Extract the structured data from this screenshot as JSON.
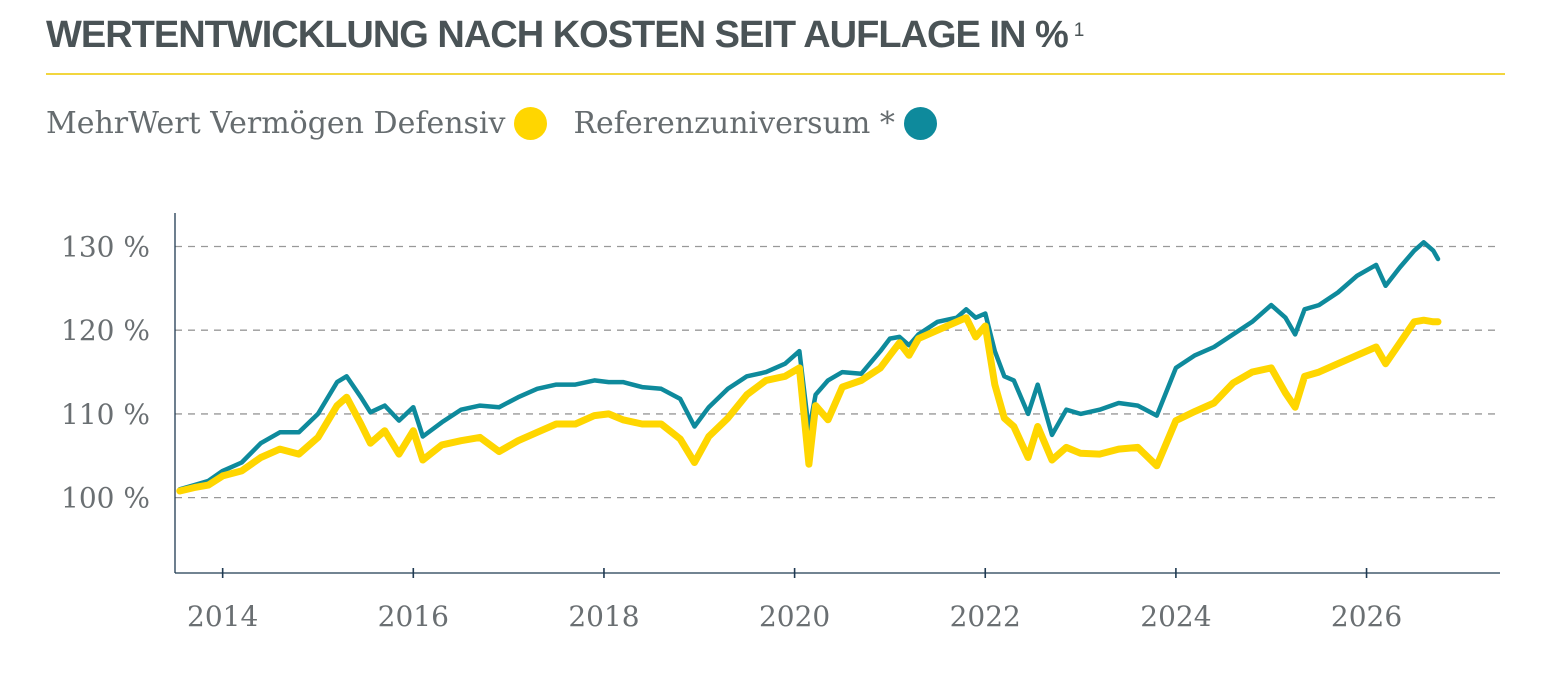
{
  "title": "WERTENTWICKLUNG NACH KOSTEN SEIT AUFLAGE IN %",
  "title_footnote": "1",
  "colors": {
    "title": "#4a5356",
    "accent": "#f2d63f",
    "fund": "#ffd600",
    "reference": "#0e8a9c",
    "grid": "#999999",
    "axis": "#1f3a52"
  },
  "legend": [
    {
      "label": "MehrWert Vermögen Defensiv",
      "color": "#ffd600"
    },
    {
      "label": "Referenzuniversum *",
      "color": "#0e8a9c"
    }
  ],
  "chart_data": {
    "type": "line",
    "y_tick_labels": [
      "100 %",
      "110 %",
      "120 %",
      "130 %"
    ],
    "y_ticks": [
      100,
      110,
      120,
      130
    ],
    "ylim": [
      91,
      134
    ],
    "x_tick_labels": [
      "2014",
      "2016",
      "2018",
      "2020",
      "2022",
      "2024",
      "2026"
    ],
    "x_ticks": [
      2014,
      2016,
      2018,
      2020,
      2022,
      2024,
      2026
    ],
    "xlim": [
      2013.5,
      2027.4
    ],
    "grid": true,
    "series": [
      {
        "name": "MehrWert Vermögen Defensiv",
        "color": "#ffd600",
        "x": [
          2013.55,
          2013.7,
          2013.85,
          2014.0,
          2014.2,
          2014.4,
          2014.6,
          2014.8,
          2015.0,
          2015.2,
          2015.3,
          2015.45,
          2015.55,
          2015.7,
          2015.85,
          2016.0,
          2016.1,
          2016.3,
          2016.5,
          2016.7,
          2016.9,
          2017.1,
          2017.3,
          2017.5,
          2017.7,
          2017.9,
          2018.05,
          2018.2,
          2018.4,
          2018.6,
          2018.8,
          2018.95,
          2019.1,
          2019.3,
          2019.5,
          2019.7,
          2019.9,
          2020.05,
          2020.15,
          2020.22,
          2020.35,
          2020.5,
          2020.7,
          2020.9,
          2021.0,
          2021.1,
          2021.2,
          2021.3,
          2021.5,
          2021.7,
          2021.8,
          2021.9,
          2022.0,
          2022.1,
          2022.2,
          2022.3,
          2022.45,
          2022.55,
          2022.7,
          2022.85,
          2023.0,
          2023.2,
          2023.4,
          2023.6,
          2023.8,
          2024.0,
          2024.2,
          2024.4,
          2024.6,
          2024.8,
          2025.0,
          2025.15,
          2025.25,
          2025.35,
          2025.5,
          2025.7,
          2025.9,
          2026.1,
          2026.2,
          2026.35,
          2026.5,
          2026.6,
          2026.7,
          2026.75
        ],
        "y": [
          100.8,
          101.2,
          101.5,
          102.6,
          103.2,
          104.8,
          105.8,
          105.2,
          107.2,
          111.0,
          112.0,
          108.8,
          106.5,
          108.0,
          105.2,
          108.0,
          104.5,
          106.3,
          106.8,
          107.2,
          105.5,
          106.8,
          107.8,
          108.8,
          108.8,
          109.8,
          110.0,
          109.3,
          108.8,
          108.8,
          107.0,
          104.2,
          107.3,
          109.5,
          112.3,
          114.0,
          114.5,
          115.5,
          104.0,
          111.0,
          109.3,
          113.2,
          114.0,
          115.5,
          117.0,
          118.5,
          117.0,
          119.0,
          120.0,
          121.0,
          121.5,
          119.2,
          120.5,
          113.5,
          109.5,
          108.5,
          104.8,
          108.5,
          104.5,
          106.0,
          105.3,
          105.2,
          105.8,
          106.0,
          103.8,
          109.2,
          110.3,
          111.3,
          113.7,
          115.0,
          115.5,
          112.5,
          110.8,
          114.5,
          115.0,
          116.0,
          117.0,
          118.0,
          116.0,
          118.5,
          121.0,
          121.2,
          121.0,
          121.0
        ]
      },
      {
        "name": "Referenzuniversum *",
        "color": "#0e8a9c",
        "x": [
          2013.55,
          2013.7,
          2013.85,
          2014.0,
          2014.2,
          2014.4,
          2014.6,
          2014.8,
          2015.0,
          2015.2,
          2015.3,
          2015.45,
          2015.55,
          2015.7,
          2015.85,
          2016.0,
          2016.1,
          2016.3,
          2016.5,
          2016.7,
          2016.9,
          2017.1,
          2017.3,
          2017.5,
          2017.7,
          2017.9,
          2018.05,
          2018.2,
          2018.4,
          2018.6,
          2018.8,
          2018.95,
          2019.1,
          2019.3,
          2019.5,
          2019.7,
          2019.9,
          2020.05,
          2020.15,
          2020.22,
          2020.35,
          2020.5,
          2020.7,
          2020.9,
          2021.0,
          2021.1,
          2021.2,
          2021.3,
          2021.5,
          2021.7,
          2021.8,
          2021.9,
          2022.0,
          2022.1,
          2022.2,
          2022.3,
          2022.45,
          2022.55,
          2022.7,
          2022.85,
          2023.0,
          2023.2,
          2023.4,
          2023.6,
          2023.8,
          2024.0,
          2024.2,
          2024.4,
          2024.6,
          2024.8,
          2025.0,
          2025.15,
          2025.25,
          2025.35,
          2025.5,
          2025.7,
          2025.9,
          2026.1,
          2026.2,
          2026.35,
          2026.5,
          2026.6,
          2026.7,
          2026.75
        ],
        "y": [
          101.0,
          101.5,
          102.0,
          103.2,
          104.2,
          106.5,
          107.8,
          107.8,
          110.0,
          113.8,
          114.5,
          112.0,
          110.2,
          111.0,
          109.2,
          110.8,
          107.3,
          109.0,
          110.5,
          111.0,
          110.8,
          112.0,
          113.0,
          113.5,
          113.5,
          114.0,
          113.8,
          113.8,
          113.2,
          113.0,
          111.8,
          108.5,
          110.8,
          113.0,
          114.5,
          115.0,
          116.0,
          117.5,
          108.0,
          112.3,
          114.0,
          115.0,
          114.8,
          117.5,
          119.0,
          119.2,
          118.2,
          119.5,
          121.0,
          121.5,
          122.5,
          121.5,
          122.0,
          117.5,
          114.5,
          114.0,
          110.0,
          113.5,
          107.5,
          110.5,
          110.0,
          110.5,
          111.3,
          111.0,
          109.8,
          115.5,
          117.0,
          118.0,
          119.5,
          121.0,
          123.0,
          121.5,
          119.5,
          122.5,
          123.0,
          124.5,
          126.5,
          127.8,
          125.3,
          127.5,
          129.5,
          130.5,
          129.5,
          128.5
        ]
      }
    ]
  }
}
